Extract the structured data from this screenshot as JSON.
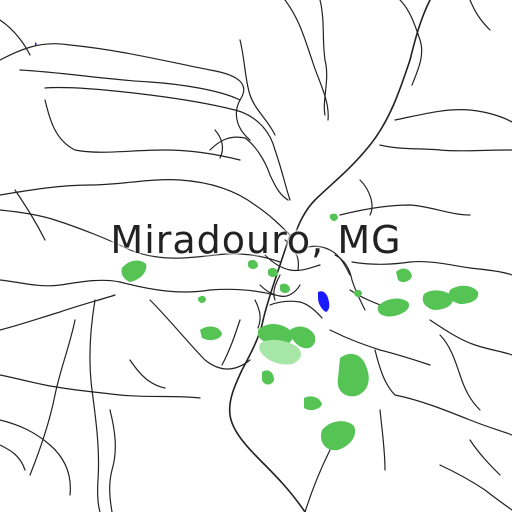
{
  "map": {
    "place_label": "Miradouro, MG",
    "colors": {
      "background": "#ffffff",
      "road": "#222222",
      "park": "#55c455",
      "park_light": "#a6e6a6",
      "water": "#1a1aff"
    }
  }
}
